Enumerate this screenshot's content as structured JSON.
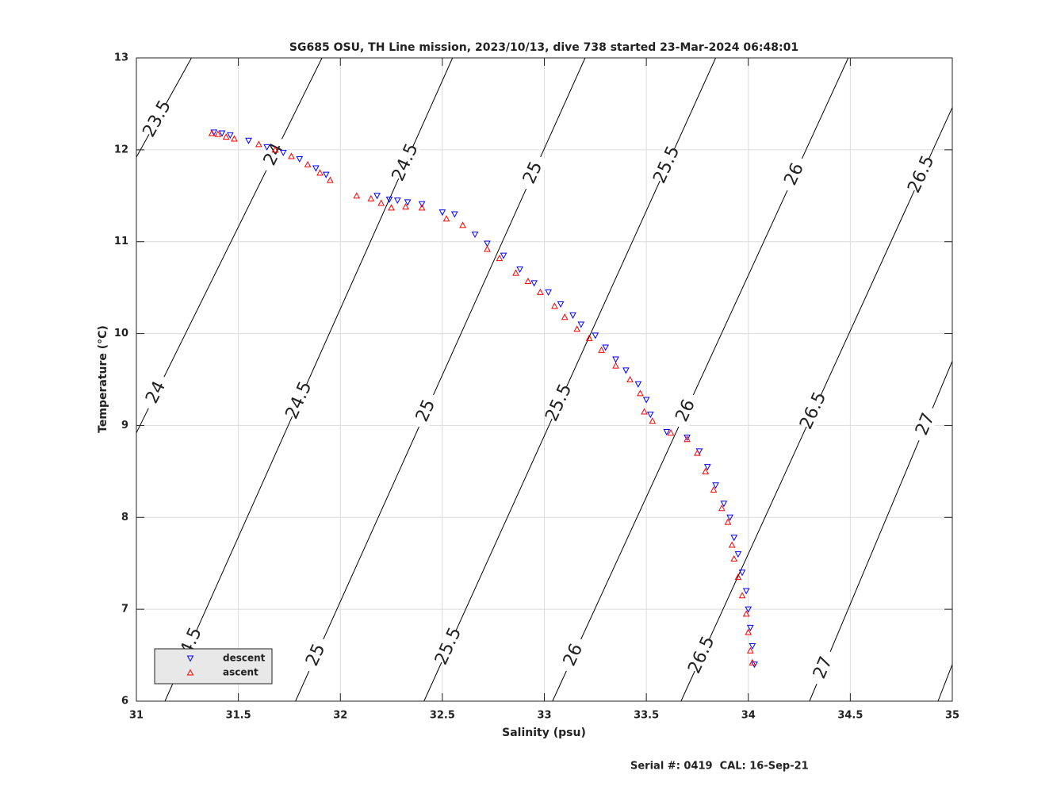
{
  "chart_data": {
    "type": "scatter",
    "title": "SG685 OSU, TH Line mission, 2023/10/13, dive 738 started 23-Mar-2024 06:48:01",
    "xlabel": "Salinity (psu)",
    "ylabel": "Temperature (°C)",
    "footer": "Serial #: 0419  CAL: 16-Sep-21",
    "xlim": [
      31,
      35
    ],
    "ylim": [
      6,
      13
    ],
    "xticks": [
      31,
      31.5,
      32,
      32.5,
      33,
      33.5,
      34,
      34.5,
      35
    ],
    "yticks": [
      6,
      7,
      8,
      9,
      10,
      11,
      12,
      13
    ],
    "grid": true,
    "legend": "lower left",
    "series": [
      {
        "name": "descent",
        "color": "#0000ff",
        "marker": "v",
        "x": [
          31.38,
          31.42,
          31.46,
          31.55,
          31.64,
          31.72,
          31.8,
          31.88,
          31.93,
          32.18,
          32.24,
          32.28,
          32.33,
          32.4,
          32.5,
          32.56,
          32.66,
          32.72,
          32.8,
          32.88,
          32.95,
          33.02,
          33.08,
          33.14,
          33.18,
          33.25,
          33.3,
          33.35,
          33.4,
          33.46,
          33.5,
          33.52,
          33.6,
          33.7,
          33.76,
          33.8,
          33.84,
          33.88,
          33.91,
          33.93,
          33.95,
          33.97,
          33.99,
          34.0,
          34.01,
          34.02,
          34.03
        ],
        "y": [
          12.19,
          12.18,
          12.16,
          12.1,
          12.03,
          11.97,
          11.9,
          11.8,
          11.73,
          11.5,
          11.46,
          11.45,
          11.43,
          11.41,
          11.32,
          11.3,
          11.08,
          10.98,
          10.85,
          10.7,
          10.55,
          10.45,
          10.32,
          10.2,
          10.1,
          9.98,
          9.85,
          9.72,
          9.6,
          9.45,
          9.28,
          9.12,
          8.93,
          8.87,
          8.72,
          8.55,
          8.35,
          8.15,
          8.0,
          7.78,
          7.6,
          7.4,
          7.2,
          7.0,
          6.8,
          6.6,
          6.4
        ]
      },
      {
        "name": "ascent",
        "color": "#ff0000",
        "marker": "^",
        "x": [
          31.37,
          31.4,
          31.44,
          31.48,
          31.6,
          31.68,
          31.76,
          31.84,
          31.9,
          31.95,
          32.08,
          32.15,
          32.2,
          32.25,
          32.32,
          32.4,
          32.52,
          32.6,
          32.72,
          32.78,
          32.86,
          32.92,
          32.98,
          33.05,
          33.1,
          33.16,
          33.22,
          33.28,
          33.35,
          33.42,
          33.47,
          33.49,
          33.53,
          33.62,
          33.7,
          33.75,
          33.79,
          33.83,
          33.87,
          33.9,
          33.92,
          33.93,
          33.95,
          33.97,
          33.99,
          34.0,
          34.01,
          34.02
        ],
        "y": [
          12.18,
          12.17,
          12.14,
          12.12,
          12.06,
          12.0,
          11.93,
          11.84,
          11.75,
          11.67,
          11.5,
          11.47,
          11.42,
          11.37,
          11.38,
          11.37,
          11.25,
          11.18,
          10.92,
          10.82,
          10.66,
          10.57,
          10.45,
          10.3,
          10.18,
          10.05,
          9.95,
          9.82,
          9.65,
          9.5,
          9.35,
          9.15,
          9.05,
          8.92,
          8.85,
          8.7,
          8.5,
          8.3,
          8.1,
          7.95,
          7.7,
          7.55,
          7.35,
          7.15,
          6.95,
          6.75,
          6.55,
          6.42
        ]
      }
    ],
    "contours": [
      {
        "level": 23.5,
        "color": "#000000",
        "x": [
          31,
          31.27
        ],
        "y": [
          11.92,
          13
        ]
      },
      {
        "level": 24,
        "color": "#000000",
        "x": [
          31,
          31.91
        ],
        "y": [
          8.92,
          13
        ]
      },
      {
        "level": 24.5,
        "color": "#000000",
        "x": [
          31.14,
          32.55
        ],
        "y": [
          6,
          13
        ]
      },
      {
        "level": 25,
        "color": "#000000",
        "x": [
          31.78,
          33.2
        ],
        "y": [
          6,
          13
        ]
      },
      {
        "level": 25.5,
        "color": "#000000",
        "x": [
          32.41,
          33.84
        ],
        "y": [
          6,
          13
        ]
      },
      {
        "level": 26,
        "color": "#000000",
        "x": [
          33.04,
          34.49
        ],
        "y": [
          6,
          13
        ]
      },
      {
        "level": 26.5,
        "color": "#000000",
        "x": [
          33.67,
          35
        ],
        "y": [
          6,
          12.46
        ]
      },
      {
        "level": 27,
        "color": "#000000",
        "x": [
          34.3,
          35
        ],
        "y": [
          6,
          9.7
        ]
      },
      {
        "color": "#000000",
        "x": [
          34.93,
          35
        ],
        "y": [
          6,
          6.4
        ]
      }
    ]
  }
}
